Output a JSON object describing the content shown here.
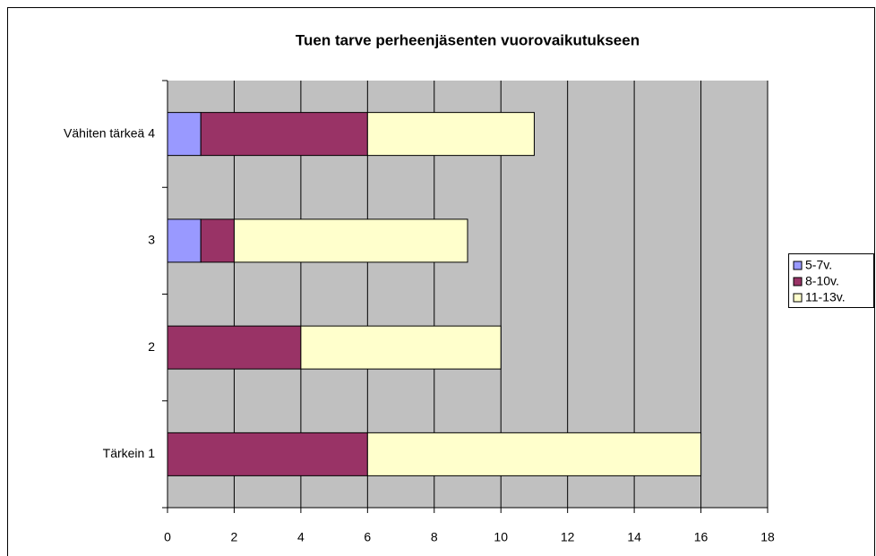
{
  "chart_data": {
    "type": "stacked_barh",
    "title": "Tuen tarve perheenjäsenten vuorovaikutukseen",
    "categories": [
      "Tärkein 1",
      "2",
      "3",
      "Vähiten tärkeä 4"
    ],
    "series": [
      {
        "name": "5-7v.",
        "color": "#9999ff",
        "values": [
          0,
          0,
          1,
          1
        ]
      },
      {
        "name": "8-10v.",
        "color": "#993366",
        "values": [
          6,
          4,
          1,
          5
        ]
      },
      {
        "name": "11-13v.",
        "color": "#ffffcc",
        "values": [
          10,
          6,
          7,
          5
        ]
      }
    ],
    "xlim": [
      0,
      18
    ],
    "xticks": [
      0,
      2,
      4,
      6,
      8,
      10,
      12,
      14,
      16,
      18
    ],
    "grid": true,
    "legend": "right"
  }
}
